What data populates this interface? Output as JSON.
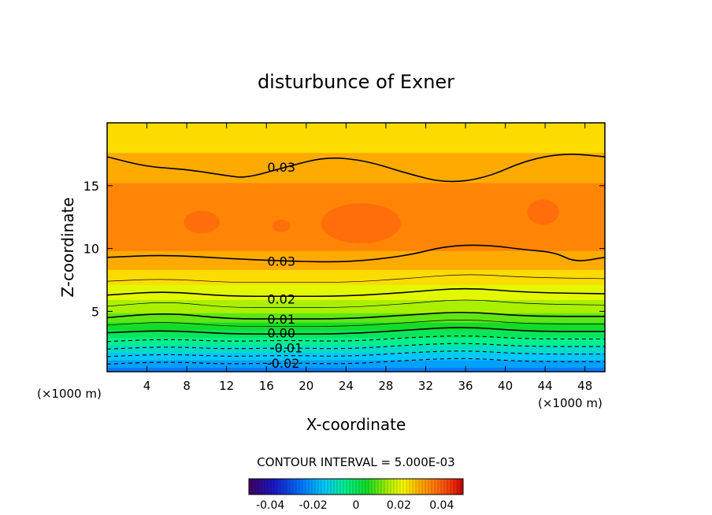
{
  "chart_data": {
    "type": "heatmap",
    "title": "disturbunce of Exner",
    "xlabel": "X-coordinate",
    "ylabel": "Z-coordinate",
    "x_unit_left": "(×1000 m)",
    "x_unit_right": "(×1000 m)",
    "xlim": [
      0,
      50
    ],
    "ylim": [
      0.2,
      20
    ],
    "x_ticks": [
      4,
      8,
      12,
      16,
      20,
      24,
      28,
      32,
      36,
      40,
      44,
      48
    ],
    "y_ticks": [
      5,
      10,
      15
    ],
    "contour_interval_text": "CONTOUR INTERVAL = 5.000E-03",
    "colorbar": {
      "min": -0.05,
      "max": 0.05,
      "ticks": [
        -0.04,
        -0.02,
        0,
        0.02,
        0.04
      ],
      "tick_labels": [
        "-0.04",
        "-0.02",
        "0",
        "0.02",
        "0.04"
      ]
    },
    "contour_labels": [
      {
        "text": "0.03",
        "x": 17.5,
        "z": 16.5
      },
      {
        "text": "0.03",
        "x": 17.5,
        "z": 9.0
      },
      {
        "text": "0.02",
        "x": 17.5,
        "z": 6.0
      },
      {
        "text": "0.01",
        "x": 17.5,
        "z": 4.4
      },
      {
        "text": "0.00",
        "x": 17.5,
        "z": 3.3
      },
      {
        "text": "-0.01",
        "x": 18.0,
        "z": 2.1
      },
      {
        "text": "-0.02",
        "x": 17.7,
        "z": 0.9
      }
    ],
    "field_bands": [
      {
        "z": 19.5,
        "value": 0.023
      },
      {
        "z": 18.5,
        "value": 0.026
      },
      {
        "z": 17.5,
        "value": 0.028
      },
      {
        "z": 16.5,
        "value": 0.03
      },
      {
        "z": 15.0,
        "value": 0.033
      },
      {
        "z": 12.0,
        "value": 0.035
      },
      {
        "z": 10.0,
        "value": 0.033
      },
      {
        "z": 9.0,
        "value": 0.03
      },
      {
        "z": 7.5,
        "value": 0.024
      },
      {
        "z": 6.5,
        "value": 0.02
      },
      {
        "z": 5.5,
        "value": 0.015
      },
      {
        "z": 4.5,
        "value": 0.01
      },
      {
        "z": 3.5,
        "value": 0.002
      },
      {
        "z": 2.5,
        "value": -0.007
      },
      {
        "z": 1.5,
        "value": -0.015
      },
      {
        "z": 0.6,
        "value": -0.022
      },
      {
        "z": 0.2,
        "value": -0.025
      }
    ],
    "contour_lines": [
      {
        "level": 0.03,
        "style": "solid",
        "points": [
          [
            0,
            17.3
          ],
          [
            4,
            16.5
          ],
          [
            8,
            16.3
          ],
          [
            12,
            15.8
          ],
          [
            14,
            15.6
          ],
          [
            18,
            16.5
          ],
          [
            22,
            17.3
          ],
          [
            26,
            17.0
          ],
          [
            30,
            16.0
          ],
          [
            34,
            15.2
          ],
          [
            38,
            15.6
          ],
          [
            42,
            17.0
          ],
          [
            46,
            17.6
          ],
          [
            50,
            17.3
          ]
        ]
      },
      {
        "level": 0.03,
        "style": "solid",
        "points": [
          [
            0,
            9.3
          ],
          [
            6,
            9.5
          ],
          [
            12,
            9.2
          ],
          [
            18,
            9.0
          ],
          [
            24,
            8.9
          ],
          [
            30,
            9.4
          ],
          [
            34,
            10.2
          ],
          [
            38,
            10.3
          ],
          [
            42,
            9.9
          ],
          [
            45,
            9.7
          ],
          [
            47,
            8.9
          ],
          [
            50,
            9.3
          ]
        ]
      },
      {
        "level": 0.025,
        "style": "thin",
        "points": [
          [
            0,
            7.4
          ],
          [
            6,
            7.6
          ],
          [
            12,
            7.3
          ],
          [
            18,
            7.3
          ],
          [
            24,
            7.3
          ],
          [
            30,
            7.6
          ],
          [
            36,
            8.0
          ],
          [
            42,
            7.7
          ],
          [
            50,
            7.6
          ]
        ]
      },
      {
        "level": 0.02,
        "style": "solid",
        "points": [
          [
            0,
            6.3
          ],
          [
            6,
            6.6
          ],
          [
            12,
            6.2
          ],
          [
            18,
            6.2
          ],
          [
            24,
            6.2
          ],
          [
            30,
            6.5
          ],
          [
            36,
            6.9
          ],
          [
            42,
            6.5
          ],
          [
            50,
            6.4
          ]
        ]
      },
      {
        "level": 0.015,
        "style": "thin",
        "points": [
          [
            0,
            5.4
          ],
          [
            6,
            5.8
          ],
          [
            12,
            5.3
          ],
          [
            18,
            5.3
          ],
          [
            24,
            5.3
          ],
          [
            30,
            5.6
          ],
          [
            36,
            6.0
          ],
          [
            42,
            5.6
          ],
          [
            50,
            5.5
          ]
        ]
      },
      {
        "level": 0.01,
        "style": "solid",
        "points": [
          [
            0,
            4.5
          ],
          [
            6,
            4.9
          ],
          [
            12,
            4.4
          ],
          [
            18,
            4.4
          ],
          [
            24,
            4.4
          ],
          [
            30,
            4.7
          ],
          [
            36,
            5.0
          ],
          [
            42,
            4.6
          ],
          [
            50,
            4.6
          ]
        ]
      },
      {
        "level": 0.005,
        "style": "thin",
        "points": [
          [
            0,
            3.9
          ],
          [
            6,
            4.2
          ],
          [
            12,
            3.8
          ],
          [
            18,
            3.8
          ],
          [
            24,
            3.8
          ],
          [
            30,
            4.1
          ],
          [
            36,
            4.4
          ],
          [
            42,
            4.0
          ],
          [
            50,
            4.0
          ]
        ]
      },
      {
        "level": 0.0,
        "style": "solid",
        "points": [
          [
            0,
            3.3
          ],
          [
            6,
            3.5
          ],
          [
            12,
            3.2
          ],
          [
            18,
            3.2
          ],
          [
            24,
            3.2
          ],
          [
            30,
            3.5
          ],
          [
            36,
            3.8
          ],
          [
            42,
            3.4
          ],
          [
            50,
            3.4
          ]
        ]
      },
      {
        "level": -0.005,
        "style": "dashed",
        "points": [
          [
            0,
            2.6
          ],
          [
            6,
            2.8
          ],
          [
            12,
            2.6
          ],
          [
            18,
            2.7
          ],
          [
            24,
            2.6
          ],
          [
            30,
            2.9
          ],
          [
            36,
            3.1
          ],
          [
            42,
            2.8
          ],
          [
            50,
            2.8
          ]
        ]
      },
      {
        "level": -0.01,
        "style": "dashed",
        "points": [
          [
            0,
            2.0
          ],
          [
            6,
            2.2
          ],
          [
            12,
            2.0
          ],
          [
            18,
            2.1
          ],
          [
            24,
            2.0
          ],
          [
            30,
            2.3
          ],
          [
            36,
            2.5
          ],
          [
            42,
            2.2
          ],
          [
            50,
            2.2
          ]
        ]
      },
      {
        "level": -0.015,
        "style": "dashed",
        "points": [
          [
            0,
            1.4
          ],
          [
            6,
            1.6
          ],
          [
            12,
            1.4
          ],
          [
            18,
            1.5
          ],
          [
            24,
            1.4
          ],
          [
            30,
            1.7
          ],
          [
            36,
            1.9
          ],
          [
            42,
            1.6
          ],
          [
            50,
            1.6
          ]
        ]
      },
      {
        "level": -0.02,
        "style": "dashed",
        "points": [
          [
            0,
            0.8
          ],
          [
            6,
            1.0
          ],
          [
            12,
            0.8
          ],
          [
            18,
            0.9
          ],
          [
            24,
            0.8
          ],
          [
            30,
            1.1
          ],
          [
            36,
            1.3
          ],
          [
            42,
            1.0
          ],
          [
            50,
            1.0
          ]
        ]
      }
    ],
    "highs": [
      {
        "x": 9.5,
        "z": 12.1,
        "rx": 1.8,
        "rz": 0.9
      },
      {
        "x": 17.5,
        "z": 11.8,
        "rx": 0.9,
        "rz": 0.5
      },
      {
        "x": 25.5,
        "z": 12.0,
        "rx": 4.0,
        "rz": 1.6
      },
      {
        "x": 43.8,
        "z": 12.9,
        "rx": 1.6,
        "rz": 1.0
      }
    ]
  }
}
